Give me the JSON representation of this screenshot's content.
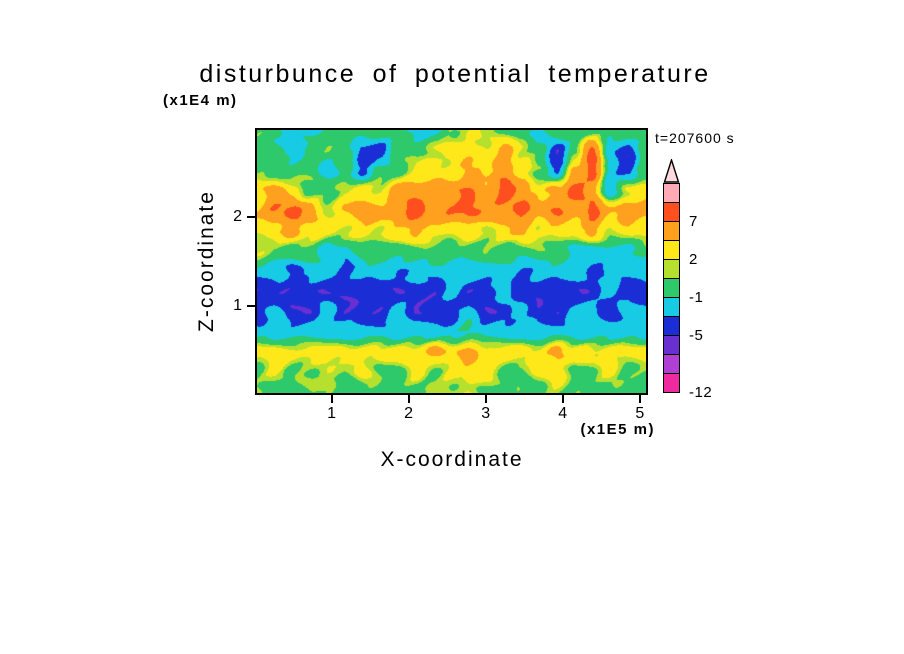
{
  "page": {
    "background": "#ffffff"
  },
  "chart_data": {
    "type": "heatmap",
    "title": "disturbunce of potential temperature",
    "annotation": "t=207600 s",
    "xlabel": "X-coordinate",
    "ylabel": "Z-coordinate",
    "x_units": "(x1E5 m)",
    "y_units": "(x1E4 m)",
    "x_range": [
      0,
      5.1
    ],
    "y_range": [
      0,
      3
    ],
    "x_ticks": [
      1,
      2,
      3,
      4,
      5
    ],
    "y_ticks": [
      1,
      2
    ],
    "grid_lines": false,
    "legend_position": "right",
    "levels": [
      -12,
      -9,
      -7,
      -5,
      -3,
      -1,
      1,
      2,
      4,
      7,
      10
    ],
    "interval_colors": [
      "#ff4fc4",
      "#ee2b9e",
      "#b03fd4",
      "#6a2fd0",
      "#1b2ed6",
      "#17cbe4",
      "#2ec96a",
      "#b5e02e",
      "#ffe81a",
      "#ffa01e",
      "#ff4f1e",
      "#ffaab4"
    ],
    "colorbar": {
      "segments": [
        {
          "color": "#ee2b9e",
          "label": "-12"
        },
        {
          "color": "#b03fd4"
        },
        {
          "color": "#6a2fd0"
        },
        {
          "color": "#1b2ed6",
          "label": "-5"
        },
        {
          "color": "#17cbe4"
        },
        {
          "color": "#2ec96a",
          "label": "-1"
        },
        {
          "color": "#b5e02e"
        },
        {
          "color": "#ffe81a",
          "label": "2"
        },
        {
          "color": "#ffa01e"
        },
        {
          "color": "#ff4f1e",
          "label": "7"
        },
        {
          "color": "#ffaab4"
        }
      ],
      "arrow_color": "#ffd9de"
    },
    "grid": {
      "rows_order": "top_to_bottom",
      "values": [
        [
          0.5,
          0,
          -1.5,
          -2,
          0,
          0.5,
          0,
          0,
          0.5,
          -2,
          -1.5,
          0.5,
          2.5,
          1,
          0.5,
          0,
          -1.5,
          0,
          0.5,
          0,
          0,
          0.5,
          0
        ],
        [
          0,
          -1,
          -2,
          0,
          0.5,
          0,
          -4,
          -4,
          0,
          0.5,
          2,
          3,
          3,
          2.5,
          5,
          2,
          0,
          -4.5,
          0,
          8,
          -2,
          -4.5,
          0
        ],
        [
          0.5,
          0,
          0,
          0.5,
          -2,
          0,
          -4,
          0,
          0.5,
          2,
          3,
          2,
          5,
          3,
          6,
          3,
          0.5,
          -4,
          5,
          8,
          -2,
          -4,
          0.5
        ],
        [
          3,
          5,
          3,
          0.5,
          0,
          2,
          3,
          2,
          5,
          6,
          5,
          6,
          7,
          5,
          8,
          6,
          3,
          5,
          8,
          5,
          -2,
          2,
          3
        ],
        [
          4,
          7,
          8,
          5,
          2,
          4,
          6,
          5,
          7,
          8,
          5,
          7,
          8,
          6,
          7,
          8,
          5,
          7,
          5,
          8,
          4,
          6,
          5
        ],
        [
          2,
          3,
          5,
          3,
          2,
          2,
          3,
          2,
          3,
          5,
          3,
          2,
          3,
          2,
          3,
          5,
          2,
          3,
          2,
          5,
          2,
          3,
          2
        ],
        [
          2,
          0.5,
          0,
          0,
          -2,
          -2,
          0,
          0.5,
          0,
          0,
          0.5,
          0,
          0,
          0.5,
          0,
          0,
          0.5,
          0,
          -1.5,
          -2,
          -2,
          -2,
          0
        ],
        [
          -2,
          -2,
          -3.5,
          -2,
          -2,
          -3.5,
          -2,
          -2,
          -3.5,
          -2,
          -2,
          -2,
          -2,
          -2,
          -2,
          -3.5,
          -2,
          -2,
          -2,
          -3.5,
          -2,
          -2,
          -2
        ],
        [
          -4.5,
          -4.5,
          -4.5,
          -4.5,
          -4.5,
          -4.5,
          -4.5,
          -4.5,
          -4.5,
          -4.5,
          -4.5,
          -2,
          -4.5,
          -4.5,
          -1.5,
          -4.5,
          -4.5,
          -4.5,
          -4.5,
          -4.5,
          -2,
          -4.5,
          -4.5
        ],
        [
          -4.5,
          -2,
          -4.5,
          -4.5,
          -2,
          -4.5,
          -4.5,
          -4.5,
          -2,
          -4.5,
          -4.5,
          -4.5,
          -2,
          -4.5,
          -4.5,
          -2,
          -4.5,
          -4.5,
          -2,
          -2,
          -4.5,
          -2,
          -2
        ],
        [
          -2,
          -2,
          -2,
          -2,
          -2,
          -2,
          -2,
          -2,
          -2,
          -2,
          -2,
          -2,
          -0.5,
          -2,
          -2,
          -2,
          -2,
          -2,
          -2,
          -2,
          -2,
          -2,
          -2
        ],
        [
          2.5,
          3,
          2.5,
          3,
          2.5,
          3,
          2.5,
          3,
          2.5,
          3,
          5,
          3,
          5,
          3,
          2.5,
          3,
          2.5,
          5,
          3,
          2.5,
          3,
          2.5,
          3
        ],
        [
          0.5,
          2.5,
          0.5,
          0.5,
          2.5,
          0.5,
          2.5,
          0.5,
          0.5,
          2.5,
          0.5,
          2.5,
          3,
          2.5,
          0.5,
          0.5,
          2.5,
          3,
          0.5,
          0.5,
          2.5,
          0.5,
          0.5
        ],
        [
          0.5,
          0,
          0.5,
          1.5,
          0.5,
          0,
          0,
          0.5,
          0,
          0.5,
          1.5,
          0.5,
          2,
          0.5,
          0,
          0.5,
          0,
          1.5,
          0.5,
          0,
          0.5,
          0,
          0.5
        ]
      ]
    },
    "render_style": {
      "noise_amp": 0.6,
      "noise_freq_x": 2.4,
      "noise_freq_y": 3.1,
      "noise_warp": 2.2,
      "noise_shear": 0.6
    }
  }
}
